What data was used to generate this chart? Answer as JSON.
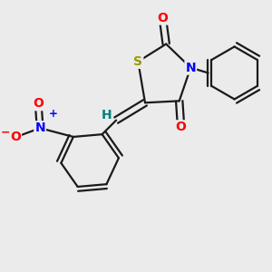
{
  "background_color": "#ebebeb",
  "atom_colors": {
    "S": "#999900",
    "N": "#0000ff",
    "O": "#ff0000",
    "C": "#000000",
    "H": "#008080"
  },
  "bond_color": "#1a1a1a",
  "bond_width": 1.6,
  "figsize": [
    3.0,
    3.0
  ],
  "dpi": 100
}
